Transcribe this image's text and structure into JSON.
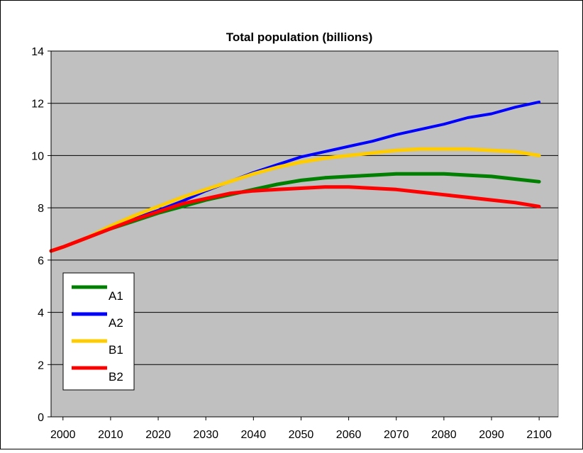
{
  "chart_data": {
    "type": "line",
    "title": "Total population (billions)",
    "xlabel": "",
    "ylabel": "",
    "xlim": [
      1997.5,
      2104
    ],
    "ylim": [
      0,
      14
    ],
    "grid": "horizontal",
    "legend": "bottom-left",
    "x_ticks": [
      "2000",
      "2010",
      "2020",
      "2030",
      "2040",
      "2050",
      "2060",
      "2070",
      "2080",
      "2090",
      "2100"
    ],
    "y_ticks": [
      "0",
      "2",
      "4",
      "6",
      "8",
      "10",
      "12",
      "14"
    ],
    "colors": {
      "plot_background": "#c0c0c0",
      "grid": "#000000",
      "A1": "#008000",
      "A2": "#0000ff",
      "B1": "#ffcc00",
      "B2": "#ff0000"
    },
    "series": [
      {
        "name": "A1",
        "x": [
          1997.5,
          2000,
          2005,
          2010,
          2015,
          2020,
          2025,
          2030,
          2035,
          2040,
          2045,
          2050,
          2055,
          2060,
          2065,
          2070,
          2075,
          2080,
          2085,
          2090,
          2095,
          2100
        ],
        "y": [
          6.35,
          6.5,
          6.85,
          7.2,
          7.5,
          7.8,
          8.05,
          8.3,
          8.5,
          8.7,
          8.9,
          9.05,
          9.15,
          9.2,
          9.25,
          9.3,
          9.3,
          9.3,
          9.25,
          9.2,
          9.1,
          9.0
        ]
      },
      {
        "name": "A2",
        "x": [
          1997.5,
          2000,
          2005,
          2010,
          2015,
          2020,
          2025,
          2030,
          2035,
          2040,
          2045,
          2050,
          2055,
          2060,
          2065,
          2070,
          2075,
          2080,
          2085,
          2090,
          2095,
          2100
        ],
        "y": [
          6.35,
          6.5,
          6.85,
          7.25,
          7.6,
          7.9,
          8.25,
          8.65,
          9.0,
          9.35,
          9.65,
          9.95,
          10.15,
          10.35,
          10.55,
          10.8,
          11.0,
          11.2,
          11.45,
          11.6,
          11.85,
          12.05
        ]
      },
      {
        "name": "B1",
        "x": [
          1997.5,
          2000,
          2005,
          2010,
          2015,
          2020,
          2025,
          2030,
          2035,
          2040,
          2045,
          2050,
          2055,
          2060,
          2065,
          2070,
          2075,
          2080,
          2085,
          2090,
          2095,
          2100
        ],
        "y": [
          6.35,
          6.5,
          6.85,
          7.3,
          7.7,
          8.05,
          8.4,
          8.7,
          9.0,
          9.3,
          9.55,
          9.75,
          9.9,
          10.0,
          10.1,
          10.2,
          10.25,
          10.25,
          10.25,
          10.2,
          10.15,
          10.0
        ]
      },
      {
        "name": "B2",
        "x": [
          1997.5,
          2000,
          2005,
          2010,
          2015,
          2020,
          2025,
          2030,
          2035,
          2040,
          2045,
          2050,
          2055,
          2060,
          2065,
          2070,
          2075,
          2080,
          2085,
          2090,
          2095,
          2100
        ],
        "y": [
          6.35,
          6.5,
          6.85,
          7.2,
          7.55,
          7.85,
          8.15,
          8.35,
          8.55,
          8.65,
          8.7,
          8.75,
          8.8,
          8.8,
          8.75,
          8.7,
          8.6,
          8.5,
          8.4,
          8.3,
          8.2,
          8.05
        ]
      }
    ]
  }
}
